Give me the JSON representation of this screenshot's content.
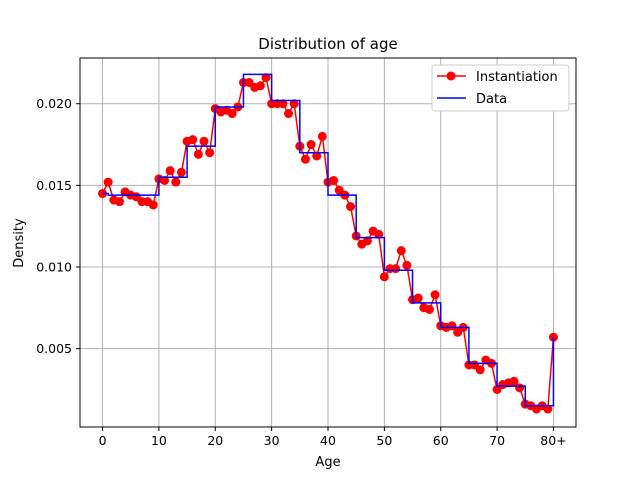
{
  "chart_data": {
    "type": "line",
    "title": "Distribution of age",
    "xlabel": "Age",
    "ylabel": "Density",
    "xlim": [
      -4,
      84
    ],
    "ylim": [
      0.0002,
      0.0228
    ],
    "xticks": [
      0,
      10,
      20,
      30,
      40,
      50,
      60,
      70,
      80
    ],
    "xtick_labels": [
      "0",
      "10",
      "20",
      "30",
      "40",
      "50",
      "60",
      "70",
      "80+"
    ],
    "yticks": [
      0.005,
      0.01,
      0.015,
      0.02
    ],
    "ytick_labels": [
      "0.005",
      "0.010",
      "0.015",
      "0.020"
    ],
    "grid": true,
    "legend_position": "top-right",
    "series": [
      {
        "name": "Instantiation",
        "style": "line-marker",
        "color": "#ff0000",
        "x": [
          0,
          1,
          2,
          3,
          4,
          5,
          6,
          7,
          8,
          9,
          10,
          11,
          12,
          13,
          14,
          15,
          16,
          17,
          18,
          19,
          20,
          21,
          22,
          23,
          24,
          25,
          26,
          27,
          28,
          29,
          30,
          31,
          32,
          33,
          34,
          35,
          36,
          37,
          38,
          39,
          40,
          41,
          42,
          43,
          44,
          45,
          46,
          47,
          48,
          49,
          50,
          51,
          52,
          53,
          54,
          55,
          56,
          57,
          58,
          59,
          60,
          61,
          62,
          63,
          64,
          65,
          66,
          67,
          68,
          69,
          70,
          71,
          72,
          73,
          74,
          75,
          76,
          77,
          78,
          79,
          80
        ],
        "y": [
          0.0145,
          0.0152,
          0.0141,
          0.014,
          0.0146,
          0.0144,
          0.0143,
          0.014,
          0.014,
          0.0138,
          0.0154,
          0.0153,
          0.0159,
          0.0152,
          0.0158,
          0.0177,
          0.0178,
          0.0169,
          0.0177,
          0.017,
          0.0197,
          0.0195,
          0.0196,
          0.0194,
          0.0198,
          0.0213,
          0.0213,
          0.021,
          0.0211,
          0.0216,
          0.02,
          0.02,
          0.02,
          0.0194,
          0.02,
          0.0174,
          0.0166,
          0.0175,
          0.0168,
          0.018,
          0.0152,
          0.0153,
          0.0147,
          0.0144,
          0.0137,
          0.0119,
          0.0114,
          0.0116,
          0.0122,
          0.012,
          0.0094,
          0.0099,
          0.0099,
          0.011,
          0.0101,
          0.008,
          0.0081,
          0.0075,
          0.0074,
          0.0083,
          0.0064,
          0.0063,
          0.0064,
          0.006,
          0.0063,
          0.004,
          0.004,
          0.0037,
          0.0043,
          0.0041,
          0.0025,
          0.0028,
          0.0029,
          0.003,
          0.0026,
          0.0016,
          0.0015,
          0.0013,
          0.0015,
          0.0013,
          0.0057
        ]
      },
      {
        "name": "Data",
        "style": "step",
        "color": "#0000ff",
        "x": [
          0,
          1,
          2,
          3,
          4,
          5,
          6,
          7,
          8,
          9,
          10,
          11,
          12,
          13,
          14,
          15,
          16,
          17,
          18,
          19,
          20,
          21,
          22,
          23,
          24,
          25,
          26,
          27,
          28,
          29,
          30,
          31,
          32,
          33,
          34,
          35,
          36,
          37,
          38,
          39,
          40,
          41,
          42,
          43,
          44,
          45,
          46,
          47,
          48,
          49,
          50,
          51,
          52,
          53,
          54,
          55,
          56,
          57,
          58,
          59,
          60,
          61,
          62,
          63,
          64,
          65,
          66,
          67,
          68,
          69,
          70,
          71,
          72,
          73,
          74,
          75,
          76,
          77,
          78,
          79,
          80
        ],
        "y": [
          0.0145,
          0.0144,
          0.0144,
          0.0144,
          0.0144,
          0.0144,
          0.0144,
          0.0144,
          0.0144,
          0.0144,
          0.0155,
          0.0155,
          0.0155,
          0.0155,
          0.0155,
          0.0174,
          0.0174,
          0.0174,
          0.0174,
          0.0174,
          0.0198,
          0.0198,
          0.0198,
          0.0198,
          0.0198,
          0.0218,
          0.0218,
          0.0218,
          0.0218,
          0.0218,
          0.0202,
          0.0202,
          0.0202,
          0.0202,
          0.0202,
          0.017,
          0.017,
          0.017,
          0.017,
          0.017,
          0.0144,
          0.0144,
          0.0144,
          0.0144,
          0.0144,
          0.0118,
          0.0118,
          0.0118,
          0.0118,
          0.0118,
          0.0098,
          0.0098,
          0.0098,
          0.0098,
          0.0098,
          0.0078,
          0.0078,
          0.0078,
          0.0078,
          0.0078,
          0.0063,
          0.0063,
          0.0063,
          0.0063,
          0.0063,
          0.0041,
          0.0041,
          0.0041,
          0.0041,
          0.0041,
          0.0027,
          0.0027,
          0.0027,
          0.0027,
          0.0027,
          0.0015,
          0.0015,
          0.0015,
          0.0015,
          0.0015,
          0.0057
        ]
      }
    ]
  }
}
